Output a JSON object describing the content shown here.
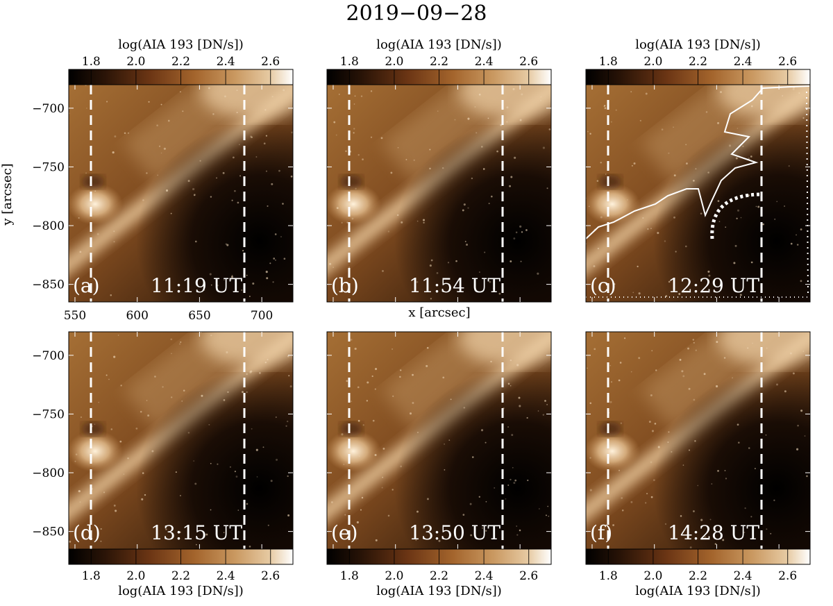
{
  "figure": {
    "title": "2019−09−28",
    "colorbar_label": "log(AIA 193 [DN/s])",
    "colorbar_ticks": [
      "1.8",
      "2.0",
      "2.2",
      "2.4",
      "2.6"
    ],
    "colorbar_range": [
      1.7,
      2.7
    ],
    "colormap": [
      "#000000",
      "#2a1407",
      "#6b3514",
      "#a3642c",
      "#c99860",
      "#e7cba4",
      "#ffffff"
    ],
    "x_axis_label": "x [arcsec]",
    "y_axis_label": "y [arcsec]",
    "x_ticks": [
      "550",
      "600",
      "650",
      "700"
    ],
    "y_ticks": [
      "−700",
      "−750",
      "−800",
      "−850"
    ],
    "x_range": [
      545,
      725
    ],
    "y_range": [
      -865,
      -680
    ]
  },
  "panels": [
    {
      "id": "a",
      "label": "(a)",
      "time": "11:19 UT"
    },
    {
      "id": "b",
      "label": "(b)",
      "time": "11:54 UT"
    },
    {
      "id": "c",
      "label": "(c)",
      "time": "12:29 UT"
    },
    {
      "id": "d",
      "label": "(d)",
      "time": "13:15 UT"
    },
    {
      "id": "e",
      "label": "(e)",
      "time": "13:50 UT"
    },
    {
      "id": "f",
      "label": "(f)",
      "time": "14:28 UT"
    }
  ]
}
